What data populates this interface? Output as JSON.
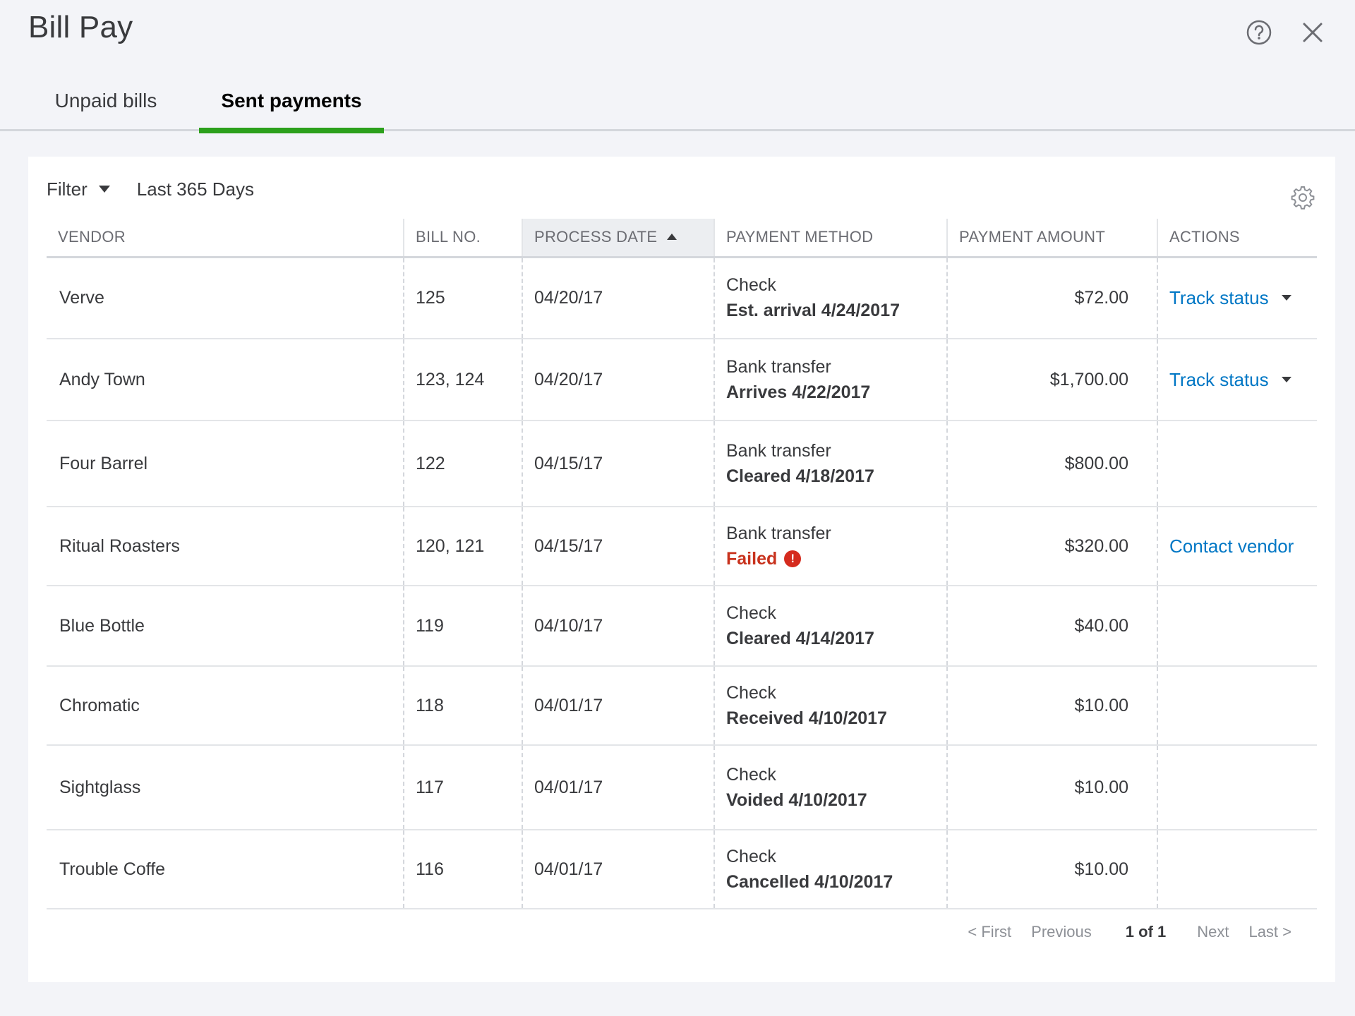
{
  "header": {
    "title": "Bill Pay"
  },
  "tabs": [
    {
      "label": "Unpaid bills",
      "active": false
    },
    {
      "label": "Sent payments",
      "active": true
    }
  ],
  "filter": {
    "label": "Filter",
    "value": "Last 365 Days"
  },
  "table": {
    "columns": {
      "vendor": "VENDOR",
      "bill_no": "BILL NO.",
      "process_date": "PROCESS DATE",
      "payment_method": "PAYMENT METHOD",
      "payment_amount": "PAYMENT AMOUNT",
      "actions": "ACTIONS"
    },
    "rows": [
      {
        "vendor": "Verve",
        "bill_no": "125",
        "process_date": "04/20/17",
        "method": "Check",
        "status": "Est. arrival 4/24/2017",
        "amount": "$72.00",
        "action": "Track status"
      },
      {
        "vendor": "Andy Town",
        "bill_no": "123, 124",
        "process_date": "04/20/17",
        "method": "Bank transfer",
        "status": "Arrives 4/22/2017",
        "amount": "$1,700.00",
        "action": "Track status"
      },
      {
        "vendor": "Four Barrel",
        "bill_no": "122",
        "process_date": "04/15/17",
        "method": "Bank transfer",
        "status": "Cleared 4/18/2017",
        "amount": "$800.00",
        "action": ""
      },
      {
        "vendor": "Ritual Roasters",
        "bill_no": "120, 121",
        "process_date": "04/15/17",
        "method": "Bank transfer",
        "status": "Failed",
        "amount": "$320.00",
        "action": "Contact vendor"
      },
      {
        "vendor": "Blue Bottle",
        "bill_no": "119",
        "process_date": "04/10/17",
        "method": "Check",
        "status": "Cleared 4/14/2017",
        "amount": "$40.00",
        "action": ""
      },
      {
        "vendor": "Chromatic",
        "bill_no": "118",
        "process_date": "04/01/17",
        "method": "Check",
        "status": "Received 4/10/2017",
        "amount": "$10.00",
        "action": ""
      },
      {
        "vendor": "Sightglass",
        "bill_no": "117",
        "process_date": "04/01/17",
        "method": "Check",
        "status": "Voided 4/10/2017",
        "amount": "$10.00",
        "action": ""
      },
      {
        "vendor": "Trouble Coffe",
        "bill_no": "116",
        "process_date": "04/01/17",
        "method": "Check",
        "status": "Cancelled 4/10/2017",
        "amount": "$10.00",
        "action": ""
      }
    ]
  },
  "pagination": {
    "first": "< First",
    "previous": "Previous",
    "count": "1 of 1",
    "next": "Next",
    "last": "Last >"
  },
  "icons": {
    "help": "help-circle-icon",
    "close": "close-icon",
    "settings": "gear-icon",
    "error": "error-icon"
  },
  "colors": {
    "accent_green": "#2ca01c",
    "link_blue": "#0077c5",
    "error_red": "#c8321d",
    "background": "#f3f4f8"
  }
}
